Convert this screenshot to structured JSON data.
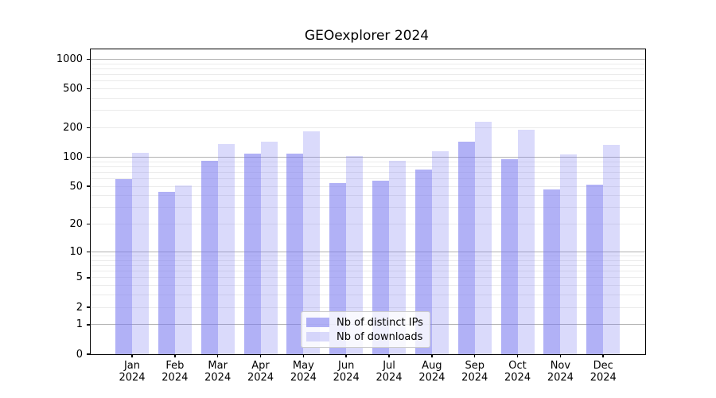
{
  "chart_data": {
    "type": "bar",
    "title": "GEOexplorer 2024",
    "categories": [
      "Jan",
      "Feb",
      "Mar",
      "Apr",
      "May",
      "Jun",
      "Jul",
      "Aug",
      "Sep",
      "Oct",
      "Nov",
      "Dec"
    ],
    "x_year": "2024",
    "series": [
      {
        "name": "Nb of distinct IPs",
        "color": "rgba(120,120,240,0.58)",
        "values": [
          60,
          44,
          91,
          108,
          108,
          54,
          57,
          75,
          143,
          95,
          46,
          52
        ]
      },
      {
        "name": "Nb of downloads",
        "color": "rgba(120,120,240,0.27)",
        "values": [
          110,
          51,
          136,
          143,
          185,
          103,
          91,
          115,
          232,
          190,
          107,
          133
        ]
      }
    ],
    "yscale": "log10(1+v)",
    "ylim": [
      0,
      1260
    ],
    "y_ticks": [
      0,
      1,
      2,
      5,
      10,
      20,
      50,
      100,
      200,
      500,
      1000
    ],
    "y_major_gridlines": [
      1,
      10,
      100,
      1000
    ],
    "grid": true,
    "legend_position": "lower center",
    "colors": {
      "major_grid": "#b2b2b2",
      "minor_grid": "#ebebeb",
      "axis": "#000000",
      "legend_border": "#cccccc"
    }
  }
}
